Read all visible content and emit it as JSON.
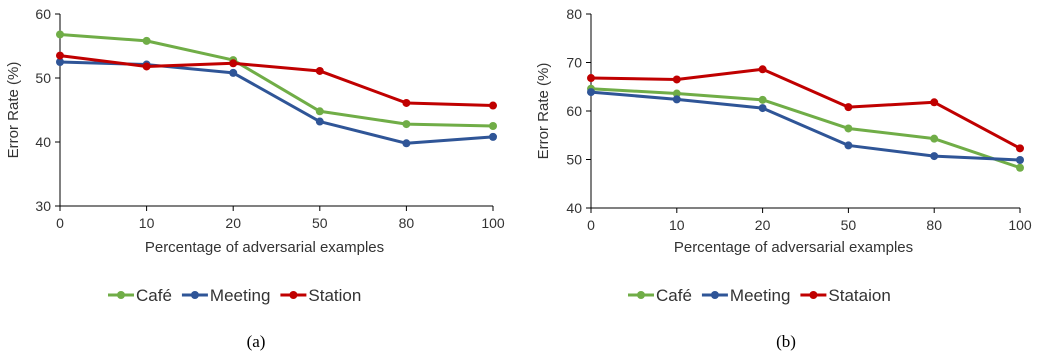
{
  "chart_data": [
    {
      "type": "line",
      "panel_label": "(a)",
      "xlabel": "Percentage of adversarial examples",
      "ylabel": "Error Rate (%)",
      "categories": [
        "0",
        "10",
        "20",
        "50",
        "80",
        "100"
      ],
      "ylim": [
        30,
        60
      ],
      "yticks": [
        30,
        40,
        50,
        60
      ],
      "grid": false,
      "legend_position": "bottom",
      "series": [
        {
          "name": "Café",
          "color": "#70AD47",
          "values": [
            56.8,
            55.8,
            52.8,
            44.8,
            42.8,
            42.5
          ]
        },
        {
          "name": "Meeting",
          "color": "#2F5597",
          "values": [
            52.5,
            52.1,
            50.8,
            43.2,
            39.8,
            40.8
          ]
        },
        {
          "name": "Station",
          "color": "#C00000",
          "values": [
            53.5,
            51.8,
            52.3,
            51.1,
            46.1,
            45.7
          ]
        }
      ]
    },
    {
      "type": "line",
      "panel_label": "(b)",
      "xlabel": "Percentage of adversarial examples",
      "ylabel": "Error Rate (%)",
      "categories": [
        "0",
        "10",
        "20",
        "50",
        "80",
        "100"
      ],
      "ylim": [
        40,
        80
      ],
      "yticks": [
        40,
        50,
        60,
        70,
        80
      ],
      "grid": false,
      "legend_position": "bottom",
      "series": [
        {
          "name": "Café",
          "color": "#70AD47",
          "values": [
            64.6,
            63.6,
            62.3,
            56.4,
            54.3,
            48.3
          ]
        },
        {
          "name": "Meeting",
          "color": "#2F5597",
          "values": [
            63.9,
            62.4,
            60.6,
            52.9,
            50.7,
            49.9
          ]
        },
        {
          "name": "Stataion",
          "color": "#C00000",
          "values": [
            66.8,
            66.5,
            68.6,
            60.8,
            61.8,
            52.3
          ]
        }
      ]
    }
  ]
}
